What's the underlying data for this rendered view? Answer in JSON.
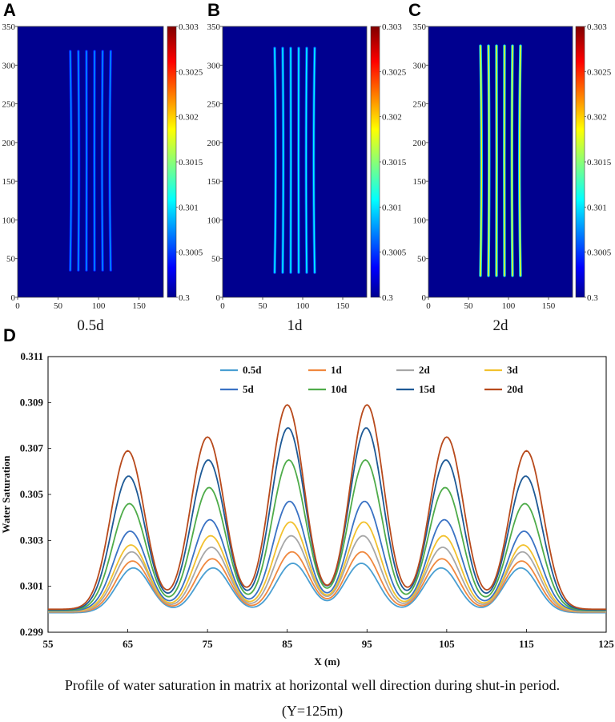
{
  "chart_data": [
    {
      "type": "heatmap",
      "panel_label": "A",
      "subtitle": "0.5d",
      "x_ticks": [
        "0",
        "50",
        "100",
        "150"
      ],
      "y_ticks": [
        "0",
        "50",
        "100",
        "150",
        "200",
        "250",
        "300",
        "350"
      ],
      "xlim": [
        0,
        180
      ],
      "ylim": [
        0,
        350
      ],
      "colorbar_ticks": [
        "0.303",
        "0.3025",
        "0.302",
        "0.3015",
        "0.301",
        "0.3005",
        "0.3"
      ],
      "colorbar_range": [
        0.3,
        0.303
      ],
      "fractures": {
        "x": [
          65,
          75,
          85,
          95,
          105,
          115
        ],
        "y_range": [
          35,
          318
        ],
        "peak_saturation": 0.3008
      }
    },
    {
      "type": "heatmap",
      "panel_label": "B",
      "subtitle": "1d",
      "x_ticks": [
        "0",
        "50",
        "100",
        "150"
      ],
      "y_ticks": [
        "0",
        "50",
        "100",
        "150",
        "200",
        "250",
        "300",
        "350"
      ],
      "xlim": [
        0,
        180
      ],
      "ylim": [
        0,
        350
      ],
      "colorbar_ticks": [
        "0.303",
        "0.3025",
        "0.302",
        "0.3015",
        "0.301",
        "0.3005",
        "0.3"
      ],
      "colorbar_range": [
        0.3,
        0.303
      ],
      "fractures": {
        "x": [
          65,
          75,
          85,
          95,
          105,
          115
        ],
        "y_range": [
          32,
          322
        ],
        "peak_saturation": 0.3011
      }
    },
    {
      "type": "heatmap",
      "panel_label": "C",
      "subtitle": "2d",
      "x_ticks": [
        "0",
        "50",
        "100",
        "150"
      ],
      "y_ticks": [
        "0",
        "50",
        "100",
        "150",
        "200",
        "250",
        "300",
        "350"
      ],
      "xlim": [
        0,
        180
      ],
      "ylim": [
        0,
        350
      ],
      "colorbar_ticks": [
        "0.303",
        "0.3025",
        "0.302",
        "0.3015",
        "0.301",
        "0.3005",
        "0.3"
      ],
      "colorbar_range": [
        0.3,
        0.303
      ],
      "fractures": {
        "x": [
          65,
          75,
          85,
          95,
          105,
          115
        ],
        "y_range": [
          28,
          325
        ],
        "peak_saturation": 0.3018
      }
    },
    {
      "type": "line",
      "panel_label": "D",
      "xlabel": "X (m)",
      "ylabel": "Water Saturation",
      "xlim": [
        55,
        125
      ],
      "ylim": [
        0.299,
        0.311
      ],
      "x_ticks": [
        "55",
        "65",
        "75",
        "85",
        "95",
        "105",
        "115",
        "125"
      ],
      "y_ticks": [
        "0.299",
        "0.301",
        "0.303",
        "0.305",
        "0.307",
        "0.309",
        "0.311"
      ],
      "legend_position": "top-center",
      "peak_x": [
        65,
        75,
        85,
        95,
        105,
        115
      ],
      "series": [
        {
          "name": "0.5d",
          "color": "#4a9fd2",
          "base": 0.29985,
          "peaks": [
            0.3018,
            0.3018,
            0.302,
            0.302,
            0.3018,
            0.3018
          ]
        },
        {
          "name": "1d",
          "color": "#f0883e",
          "base": 0.29988,
          "peaks": [
            0.3021,
            0.3022,
            0.3025,
            0.3025,
            0.3022,
            0.3021
          ]
        },
        {
          "name": "2d",
          "color": "#a7a7a7",
          "base": 0.2999,
          "peaks": [
            0.3025,
            0.3027,
            0.3032,
            0.3032,
            0.3027,
            0.3025
          ]
        },
        {
          "name": "3d",
          "color": "#f2c12e",
          "base": 0.29992,
          "peaks": [
            0.3028,
            0.3032,
            0.3038,
            0.3038,
            0.3032,
            0.3028
          ]
        },
        {
          "name": "5d",
          "color": "#3a72c4",
          "base": 0.29994,
          "peaks": [
            0.3034,
            0.3039,
            0.3047,
            0.3047,
            0.3039,
            0.3034
          ]
        },
        {
          "name": "10d",
          "color": "#4fac4a",
          "base": 0.29996,
          "peaks": [
            0.3046,
            0.3053,
            0.3065,
            0.3065,
            0.3053,
            0.3046
          ]
        },
        {
          "name": "15d",
          "color": "#1e5a96",
          "base": 0.29998,
          "peaks": [
            0.3058,
            0.3065,
            0.3079,
            0.3079,
            0.3065,
            0.3058
          ]
        },
        {
          "name": "20d",
          "color": "#b84a1c",
          "base": 0.3,
          "peaks": [
            0.3069,
            0.3075,
            0.3089,
            0.3089,
            0.3075,
            0.3069
          ]
        }
      ]
    }
  ],
  "caption": {
    "line1": "Profile of water saturation in matrix at horizontal well direction during shut-in period.",
    "line2": "(Y=125m)"
  }
}
